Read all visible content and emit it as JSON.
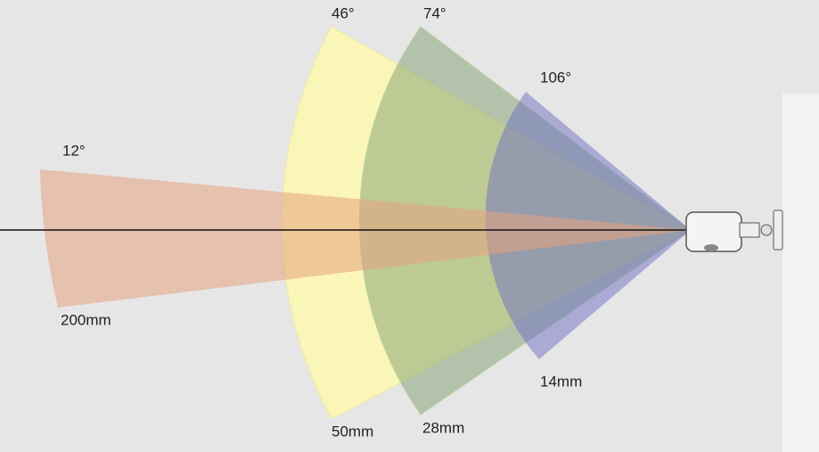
{
  "fields": [
    {
      "angle": "12°",
      "focal": "200mm"
    },
    {
      "angle": "46°",
      "focal": "50mm"
    },
    {
      "angle": "74°",
      "focal": "28mm"
    },
    {
      "angle": "106°",
      "focal": "14mm"
    }
  ]
}
